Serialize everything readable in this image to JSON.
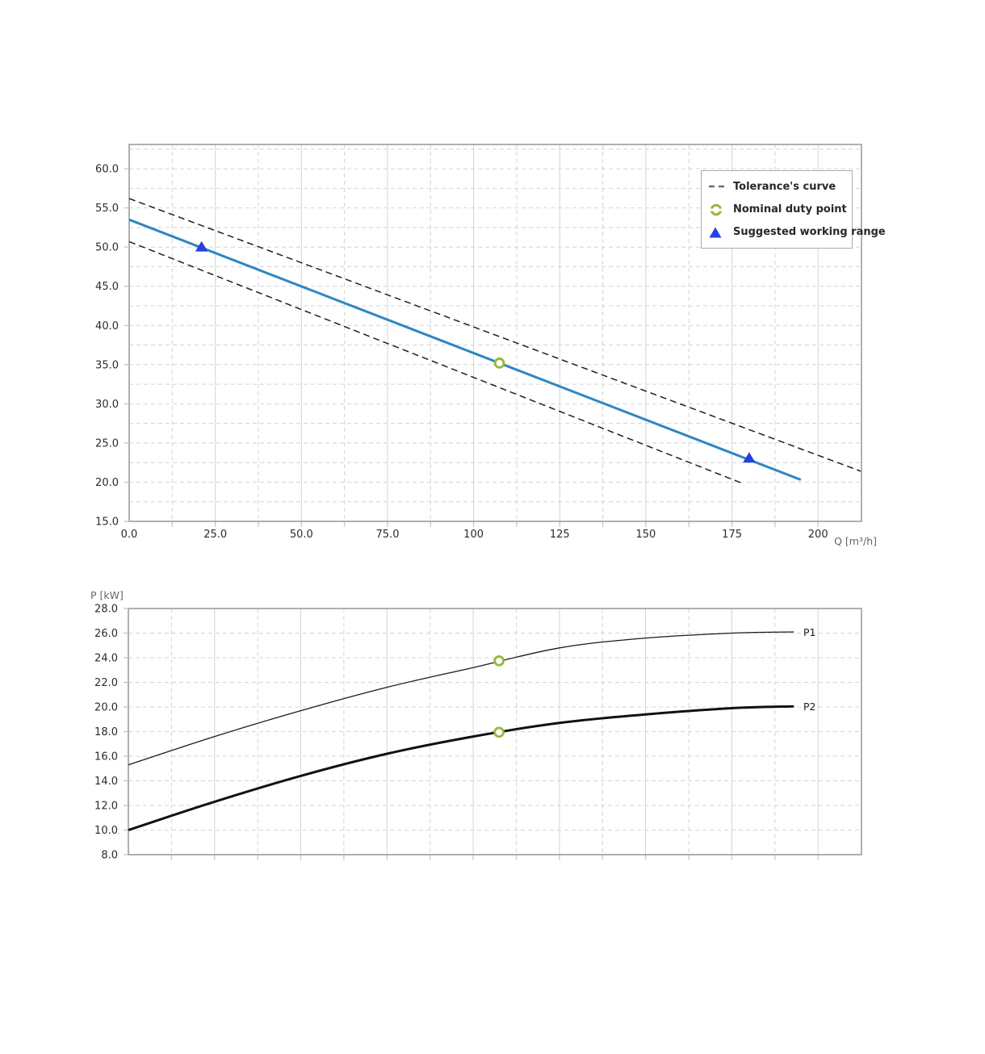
{
  "style": {
    "grid": "#d4d4d4",
    "border": "#9c9c9c",
    "tick_text": "#2b2b2b",
    "under_axis_tick": "#c3cee0",
    "left_axis_tick": "#c2c2c2",
    "background": "#ffffff"
  },
  "chart_data": [
    {
      "id": "head_flow_curve",
      "type": "line",
      "title": "",
      "xlabel": "Q [m³/h]",
      "ylabel": "",
      "xlim": [
        0,
        212.6
      ],
      "ylim": [
        15,
        63.1
      ],
      "grid": "dashed",
      "x_minor_step": 12.5,
      "x_solid_every": 25,
      "y_grid_step": 2.5,
      "x_ticks": {
        "values": [
          0,
          25,
          50,
          75,
          100,
          125,
          150,
          175,
          200
        ],
        "labels": [
          "0.0",
          "25.0",
          "50.0",
          "75.0",
          "100",
          "125",
          "150",
          "175",
          "200"
        ]
      },
      "y_ticks": {
        "values": [
          15,
          20,
          25,
          30,
          35,
          40,
          45,
          50,
          55,
          60
        ],
        "labels": [
          "15.0",
          "20.0",
          "25.0",
          "30.0",
          "35.0",
          "40.0",
          "45.0",
          "50.0",
          "55.0",
          "60.0"
        ]
      },
      "series": [
        {
          "name": "Tolerance's curve (upper)",
          "style": "dashed",
          "color": "#1f1f1f",
          "width": 1.5,
          "points": [
            [
              0,
              56.2
            ],
            [
              212.4,
              21.4
            ]
          ]
        },
        {
          "name": "Tolerance's curve (lower)",
          "style": "dashed",
          "color": "#1f1f1f",
          "width": 1.5,
          "points": [
            [
              0,
              50.7
            ],
            [
              178,
              19.85
            ]
          ]
        },
        {
          "name": "Head curve",
          "style": "solid",
          "color": "#2e86c4",
          "width": 3,
          "points": [
            [
              0,
              53.5
            ],
            [
              195,
              20.3
            ]
          ]
        }
      ],
      "markers": [
        {
          "name": "suggested-working-range-min",
          "type": "triangle",
          "color": "#2342df",
          "x": 21,
          "y": 50.0
        },
        {
          "name": "suggested-working-range-max",
          "type": "triangle",
          "color": "#2342df",
          "x": 180,
          "y": 23.05
        },
        {
          "name": "nominal-duty-point",
          "type": "ring",
          "color": "#94b93b",
          "x": 107.5,
          "y": 35.2
        }
      ],
      "legend": {
        "position": "top-right",
        "items": [
          {
            "icon": "dashed-line-icon",
            "label": "Tolerance's curve"
          },
          {
            "icon": "duty-point-icon",
            "label": "Nominal duty point"
          },
          {
            "icon": "triangle-icon",
            "label": "Suggested working range"
          }
        ]
      }
    },
    {
      "id": "power_flow_curve",
      "type": "line",
      "title": "",
      "xlabel": "",
      "ylabel": "P [kW]",
      "xlim": [
        0,
        212.6
      ],
      "ylim": [
        8,
        28
      ],
      "grid": "dashed",
      "x_minor_step": 12.5,
      "x_solid_every": 25,
      "y_grid_step": 2,
      "x_ticks": null,
      "y_ticks": {
        "values": [
          8,
          10,
          12,
          14,
          16,
          18,
          20,
          22,
          24,
          26,
          28
        ],
        "labels": [
          "8.0",
          "10.0",
          "12.0",
          "14.0",
          "16.0",
          "18.0",
          "20.0",
          "22.0",
          "24.0",
          "26.0",
          "28.0"
        ]
      },
      "series": [
        {
          "name": "P1",
          "style": "solid",
          "color": "#1b1b1b",
          "width": 1.3,
          "points": [
            [
              0,
              15.3
            ],
            [
              25,
              17.6
            ],
            [
              50,
              19.7
            ],
            [
              75,
              21.6
            ],
            [
              100,
              23.2
            ],
            [
              125,
              24.8
            ],
            [
              150,
              25.6
            ],
            [
              175,
              26.0
            ],
            [
              193,
              26.1
            ]
          ]
        },
        {
          "name": "P2",
          "style": "solid",
          "color": "#111111",
          "width": 3,
          "points": [
            [
              0,
              10.0
            ],
            [
              25,
              12.3
            ],
            [
              50,
              14.4
            ],
            [
              75,
              16.2
            ],
            [
              100,
              17.6
            ],
            [
              125,
              18.7
            ],
            [
              150,
              19.4
            ],
            [
              175,
              19.9
            ],
            [
              193,
              20.05
            ]
          ]
        }
      ],
      "markers": [
        {
          "name": "nominal-duty-point-p1",
          "type": "ring",
          "color": "#94b93b",
          "x": 107.5,
          "y": 23.75
        },
        {
          "name": "nominal-duty-point-p2",
          "type": "ring",
          "color": "#94b93b",
          "x": 107.5,
          "y": 17.95
        }
      ],
      "legend": null
    }
  ]
}
